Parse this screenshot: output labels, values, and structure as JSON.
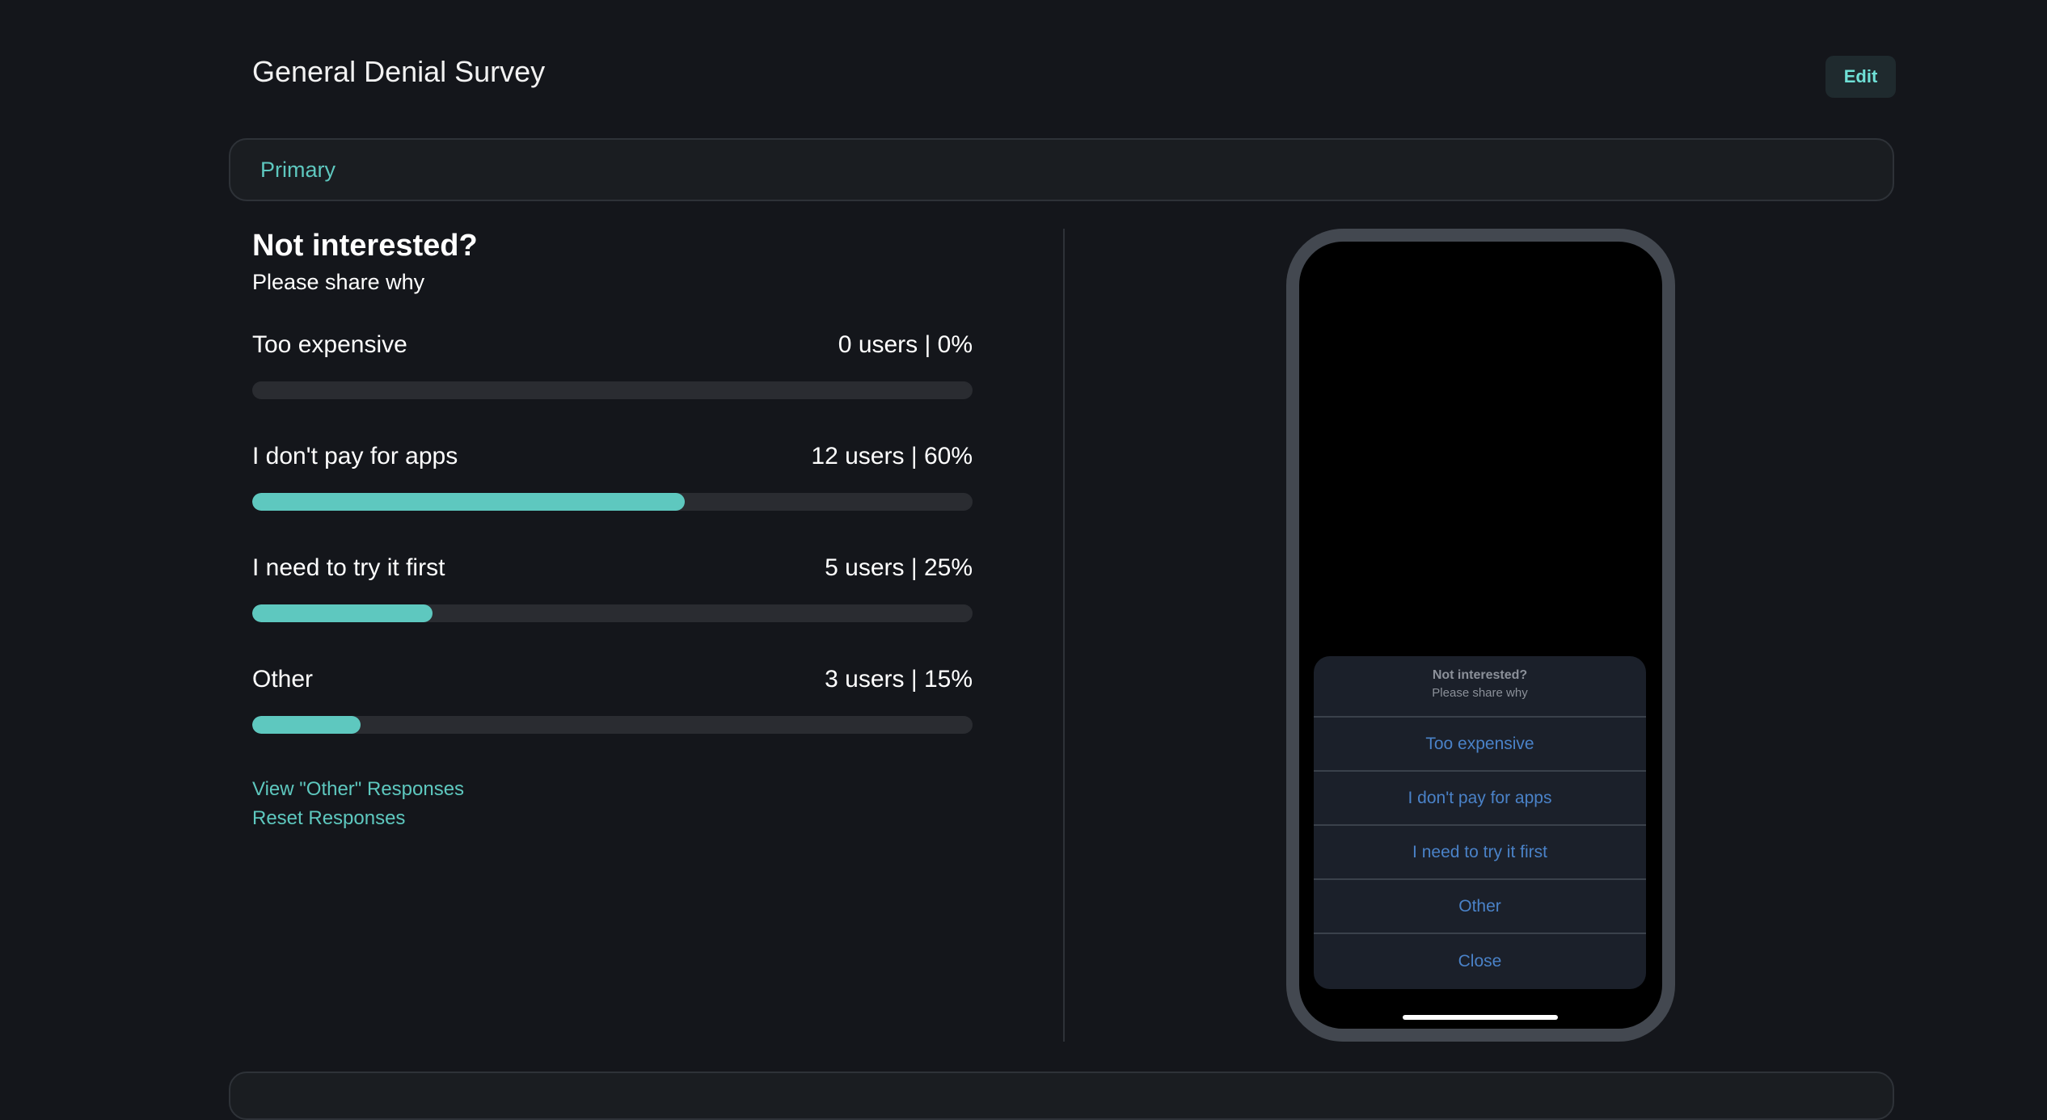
{
  "header": {
    "title": "General Denial Survey",
    "edit_label": "Edit"
  },
  "tabs": [
    {
      "label": "Primary",
      "active": true
    }
  ],
  "question": {
    "title": "Not interested?",
    "subtitle": "Please share why"
  },
  "results": [
    {
      "label": "Too expensive",
      "stat": "0 users | 0%",
      "percent": 0
    },
    {
      "label": "I don't pay for apps",
      "stat": "12 users | 60%",
      "percent": 60
    },
    {
      "label": "I need to try it first",
      "stat": "5 users | 25%",
      "percent": 25
    },
    {
      "label": "Other",
      "stat": "3 users | 15%",
      "percent": 15
    }
  ],
  "links": {
    "view_other": "View \"Other\" Responses",
    "reset": "Reset Responses"
  },
  "preview": {
    "title": "Not interested?",
    "subtitle": "Please share why",
    "options": [
      "Too expensive",
      "I don't pay for apps",
      "I need to try it first",
      "Other",
      "Close"
    ]
  },
  "colors": {
    "accent": "#5ec8bf",
    "background": "#14161b",
    "option_text": "#4a82c8"
  }
}
